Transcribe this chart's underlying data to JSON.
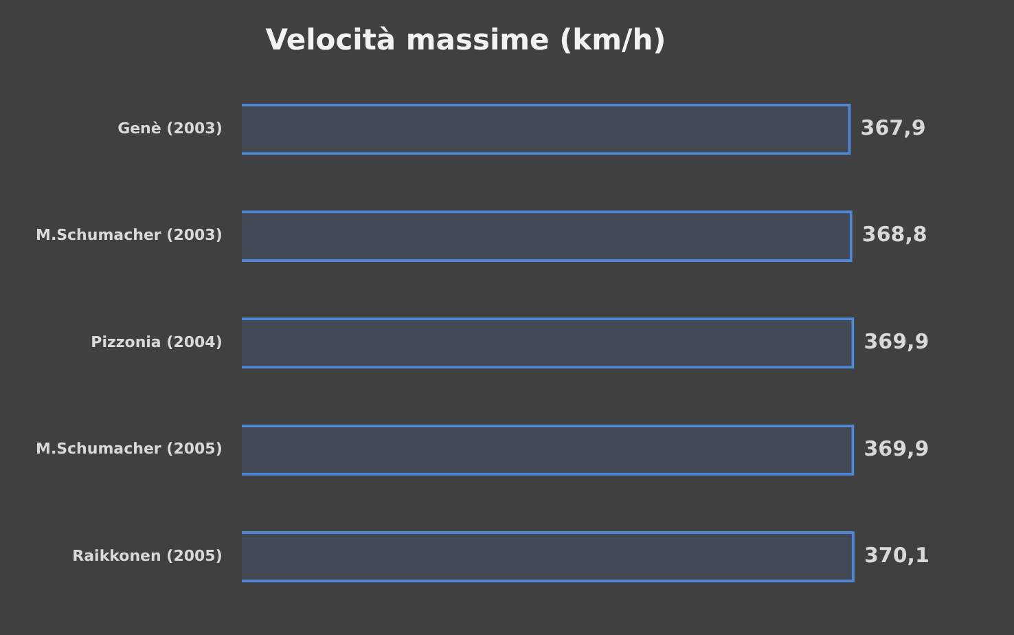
{
  "chart_data": {
    "type": "bar",
    "orientation": "horizontal",
    "title": "Velocità massime (km/h)",
    "categories": [
      "Genè (2003)",
      "M.Schumacher (2003)",
      "Pizzonia (2004)",
      "M.Schumacher (2005)",
      "Raikkonen (2005)"
    ],
    "values": [
      367.9,
      368.8,
      369.9,
      369.9,
      370.1
    ],
    "value_labels": [
      "367,9",
      "368,8",
      "369,9",
      "369,9",
      "370,1"
    ],
    "color": "#4f86d6",
    "relative": false,
    "grid": false,
    "legend": false
  }
}
